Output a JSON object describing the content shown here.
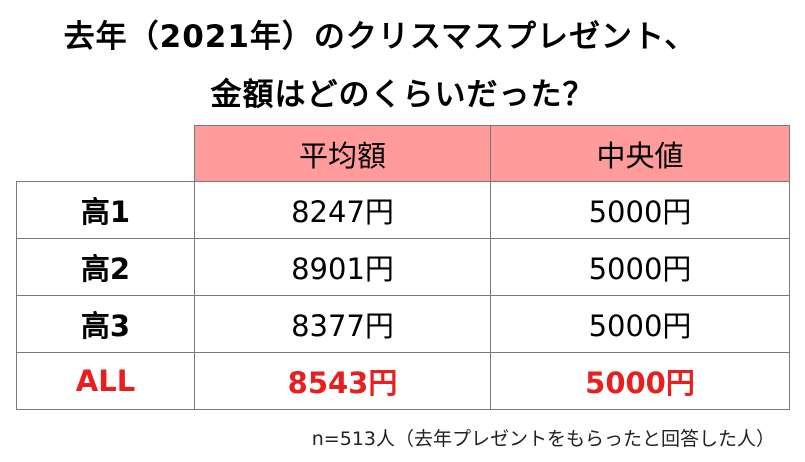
{
  "title": {
    "line1": "去年（2021年）のクリスマスプレゼント、",
    "line2": "金額はどのくらいだった？"
  },
  "table": {
    "headers": [
      "平均額",
      "中央値"
    ],
    "rows": [
      {
        "label": "高1",
        "average": "8247円",
        "median": "5000円"
      },
      {
        "label": "高2",
        "average": "8901円",
        "median": "5000円"
      },
      {
        "label": "高3",
        "average": "8377円",
        "median": "5000円"
      },
      {
        "label": "ALL",
        "average": "8543円",
        "median": "5000円"
      }
    ]
  },
  "note": "n=513人（去年プレゼントをもらったと回答した人）",
  "colors": {
    "header_fill": "#ff9b9b",
    "total_text": "#e81f1f",
    "border": "#7a7a7a"
  }
}
